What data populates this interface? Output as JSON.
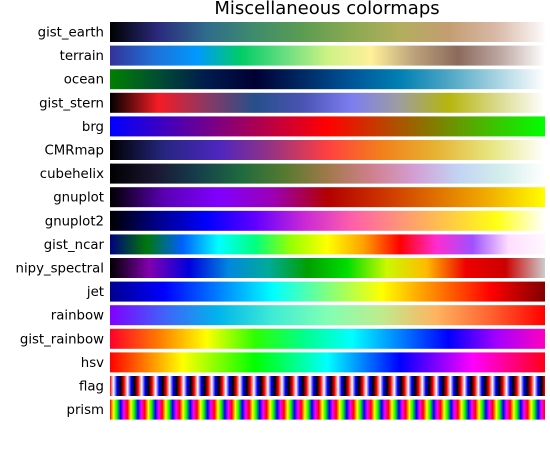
{
  "chart_data": {
    "type": "heatmap",
    "title": "Miscellaneous colormaps",
    "colormaps": [
      {
        "name": "gist_earth",
        "kind": "linear",
        "stops": [
          "#000000",
          "#2b2a7d",
          "#2f6c8c",
          "#3f8c6c",
          "#5c9c52",
          "#8aa952",
          "#b2ae5e",
          "#c39d72",
          "#d9b9a7",
          "#fdfbfb"
        ]
      },
      {
        "name": "terrain",
        "kind": "linear",
        "stops": [
          "#333399",
          "#1f6fd6",
          "#0099ff",
          "#00cc66",
          "#66dd80",
          "#ccf285",
          "#fff099",
          "#bba17a",
          "#8c6a5c",
          "#bfa9a4",
          "#ffffff"
        ]
      },
      {
        "name": "ocean",
        "kind": "linear",
        "stops": [
          "#008000",
          "#004d33",
          "#001a4d",
          "#000033",
          "#002a66",
          "#005599",
          "#0080b3",
          "#4da6c4",
          "#a6d3e2",
          "#ffffff"
        ]
      },
      {
        "name": "gist_stern",
        "kind": "linear",
        "stops": [
          "#000000",
          "#f51c24",
          "#8a3864",
          "#26508a",
          "#4b53b3",
          "#7c7ef0",
          "#9e9e9e",
          "#b5b50c",
          "#d9d98a",
          "#ffffff"
        ]
      },
      {
        "name": "brg",
        "kind": "linear",
        "stops": [
          "#0000ff",
          "#ff0000",
          "#00ff00"
        ]
      },
      {
        "name": "CMRmap",
        "kind": "linear",
        "stops": [
          "#000000",
          "#262680",
          "#4d26bf",
          "#993380",
          "#ff4040",
          "#f2801a",
          "#e6b333",
          "#e6e680",
          "#ffffff"
        ]
      },
      {
        "name": "cubehelix",
        "kind": "linear",
        "stops": [
          "#000000",
          "#1a1530",
          "#163d4d",
          "#1e6a3f",
          "#547a2f",
          "#a07949",
          "#d07f8b",
          "#d39fd4",
          "#c2d3f4",
          "#d3eeeb",
          "#ffffff"
        ]
      },
      {
        "name": "gnuplot",
        "kind": "linear",
        "stops": [
          "#000000",
          "#5a00b4",
          "#8000ff",
          "#9c00b4",
          "#b30000",
          "#cc3300",
          "#e07000",
          "#f2b000",
          "#ffff00"
        ]
      },
      {
        "name": "gnuplot2",
        "kind": "linear",
        "stops": [
          "#000000",
          "#00008c",
          "#0000ff",
          "#6000ff",
          "#c828d6",
          "#ff5eaa",
          "#ff9478",
          "#ffc846",
          "#ffff14",
          "#ffffff"
        ]
      },
      {
        "name": "gist_ncar",
        "kind": "linear",
        "stops": [
          "#000080",
          "#00770a",
          "#0060ff",
          "#00ffff",
          "#00ff80",
          "#99ff00",
          "#ffff00",
          "#ffa000",
          "#ff0000",
          "#ff2cd0",
          "#a050ff",
          "#ffdeff",
          "#fef8fe"
        ]
      },
      {
        "name": "nipy_spectral",
        "kind": "linear",
        "stops": [
          "#000000",
          "#8200b0",
          "#0000dd",
          "#0088dd",
          "#00aa9a",
          "#00a000",
          "#00dd00",
          "#ccf800",
          "#ffbb00",
          "#ee0000",
          "#cc0000",
          "#cccccc"
        ]
      },
      {
        "name": "jet",
        "kind": "linear",
        "stops": [
          "#00008f",
          "#0000ff",
          "#0080ff",
          "#00ffff",
          "#80ff80",
          "#ffff00",
          "#ff8000",
          "#ff0000",
          "#800000"
        ]
      },
      {
        "name": "rainbow",
        "kind": "linear",
        "stops": [
          "#8000ff",
          "#4062fa",
          "#00b5eb",
          "#40ecd4",
          "#80ffb4",
          "#c0eb8d",
          "#ffb360",
          "#ff6230",
          "#ff0000"
        ]
      },
      {
        "name": "gist_rainbow",
        "kind": "linear",
        "stops": [
          "#ff0029",
          "#ff7a00",
          "#ffff00",
          "#2cff00",
          "#00ff8a",
          "#00ffff",
          "#0080ff",
          "#0000ff",
          "#a300ff",
          "#ff00bf"
        ]
      },
      {
        "name": "hsv",
        "kind": "linear",
        "stops": [
          "#ff0000",
          "#ffff00",
          "#00ff00",
          "#00ffff",
          "#0000ff",
          "#ff00ff",
          "#ff0018"
        ]
      },
      {
        "name": "flag",
        "kind": "periodic",
        "periods": 31,
        "stops": [
          "#ff0000",
          "#ffffff",
          "#0000ff",
          "#000000",
          "#ff0000"
        ]
      },
      {
        "name": "prism",
        "kind": "periodic",
        "periods": 25,
        "stops": [
          "#ff0000",
          "#ffff00",
          "#00ff00",
          "#0000ff",
          "#ff00ff",
          "#ff0000"
        ]
      }
    ]
  }
}
